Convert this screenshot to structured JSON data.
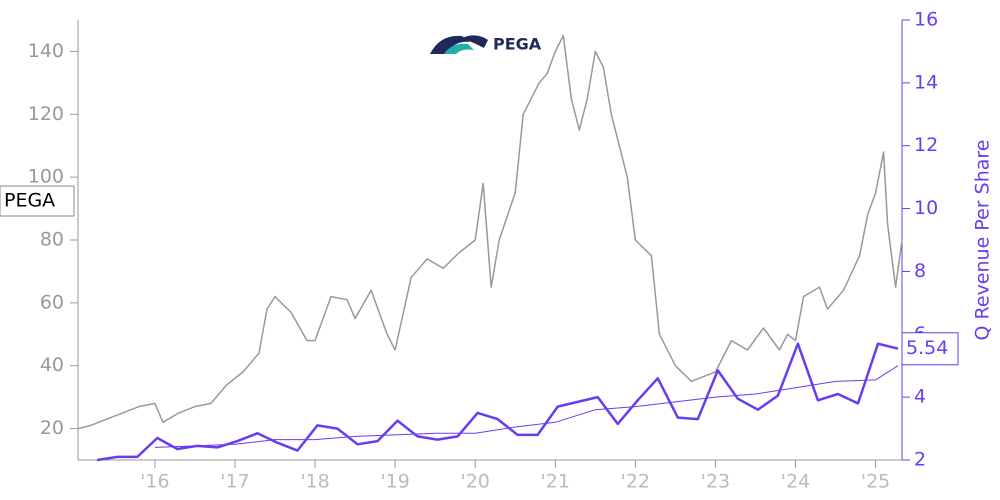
{
  "logo": "PEGA",
  "chart_data": {
    "type": "line",
    "y2label": "Q Revenue Per Share",
    "xlim": [
      2015.04,
      2025.33
    ],
    "xticks": [
      {
        "value": 2016,
        "label": "'16"
      },
      {
        "value": 2017,
        "label": "'17"
      },
      {
        "value": 2018,
        "label": "'18"
      },
      {
        "value": 2019,
        "label": "'19"
      },
      {
        "value": 2020,
        "label": "'20"
      },
      {
        "value": 2021,
        "label": "'21"
      },
      {
        "value": 2022,
        "label": "'22"
      },
      {
        "value": 2023,
        "label": "'23"
      },
      {
        "value": 2024,
        "label": "'24"
      },
      {
        "value": 2025,
        "label": "'25"
      }
    ],
    "ylim": [
      10,
      150
    ],
    "yticks": [
      20,
      40,
      60,
      80,
      100,
      120,
      140
    ],
    "y2lim": [
      2,
      16
    ],
    "y2ticks": [
      2,
      4,
      6,
      8,
      10,
      12,
      14,
      16
    ],
    "series": [
      {
        "name": "PEGA",
        "color": "#999999",
        "x": [
          2015.04,
          2015.2,
          2015.4,
          2015.6,
          2015.8,
          2016.0,
          2016.1,
          2016.3,
          2016.5,
          2016.7,
          2016.9,
          2017.1,
          2017.3,
          2017.4,
          2017.5,
          2017.7,
          2017.9,
          2018.0,
          2018.2,
          2018.4,
          2018.5,
          2018.7,
          2018.9,
          2019.0,
          2019.2,
          2019.4,
          2019.6,
          2019.8,
          2020.0,
          2020.1,
          2020.2,
          2020.3,
          2020.5,
          2020.6,
          2020.8,
          2020.9,
          2021.0,
          2021.1,
          2021.2,
          2021.3,
          2021.4,
          2021.5,
          2021.6,
          2021.7,
          2021.9,
          2022.0,
          2022.2,
          2022.3,
          2022.5,
          2022.7,
          2022.9,
          2023.0,
          2023.2,
          2023.4,
          2023.6,
          2023.8,
          2023.9,
          2024.0,
          2024.1,
          2024.3,
          2024.4,
          2024.6,
          2024.8,
          2024.9,
          2025.0,
          2025.1,
          2025.15,
          2025.25,
          2025.33
        ],
        "values": [
          20,
          21,
          23,
          25,
          27,
          28,
          22,
          25,
          27,
          28,
          34,
          38,
          44,
          58,
          62,
          57,
          48,
          48,
          62,
          61,
          55,
          64,
          50,
          45,
          68,
          74,
          71,
          76,
          80,
          98,
          65,
          80,
          95,
          120,
          130,
          133,
          140,
          145,
          125,
          115,
          125,
          140,
          135,
          120,
          100,
          80,
          75,
          50,
          40,
          35,
          37,
          38,
          48,
          45,
          52,
          45,
          50,
          48,
          62,
          65,
          58,
          64,
          75,
          88,
          95,
          108,
          85,
          65,
          80
        ]
      },
      {
        "name": "Q Revenue Per Share",
        "color": "#6a3cf0",
        "axis": "y2",
        "x": [
          2015.28,
          2015.53,
          2015.78,
          2016.03,
          2016.28,
          2016.53,
          2016.78,
          2017.03,
          2017.28,
          2017.53,
          2017.78,
          2018.03,
          2018.28,
          2018.53,
          2018.78,
          2019.03,
          2019.28,
          2019.53,
          2019.78,
          2020.03,
          2020.28,
          2020.53,
          2020.78,
          2021.03,
          2021.28,
          2021.53,
          2021.78,
          2022.03,
          2022.28,
          2022.53,
          2022.78,
          2023.03,
          2023.28,
          2023.53,
          2023.78,
          2024.03,
          2024.28,
          2024.53,
          2024.78,
          2025.03,
          2025.28
        ],
        "values": [
          2.0,
          2.1,
          2.1,
          2.7,
          2.35,
          2.45,
          2.4,
          2.6,
          2.85,
          2.55,
          2.3,
          3.1,
          3.0,
          2.5,
          2.6,
          3.25,
          2.75,
          2.65,
          2.75,
          3.5,
          3.3,
          2.8,
          2.8,
          3.7,
          3.85,
          4.0,
          3.15,
          3.9,
          4.6,
          3.35,
          3.3,
          4.85,
          3.95,
          3.6,
          4.05,
          5.7,
          3.9,
          4.1,
          3.8,
          5.7,
          5.54
        ]
      },
      {
        "color": "#6a3cf0",
        "axis": "y2",
        "thin": true,
        "x": [
          2016.0,
          2016.5,
          2017.0,
          2017.5,
          2018.0,
          2018.5,
          2019.0,
          2019.5,
          2020.0,
          2020.5,
          2021.0,
          2021.5,
          2022.0,
          2022.5,
          2023.0,
          2023.5,
          2024.0,
          2024.5,
          2025.0,
          2025.28
        ],
        "values": [
          2.4,
          2.45,
          2.5,
          2.65,
          2.65,
          2.75,
          2.8,
          2.85,
          2.85,
          3.05,
          3.2,
          3.6,
          3.7,
          3.85,
          4.0,
          4.1,
          4.3,
          4.5,
          4.55,
          5.0
        ]
      }
    ]
  }
}
